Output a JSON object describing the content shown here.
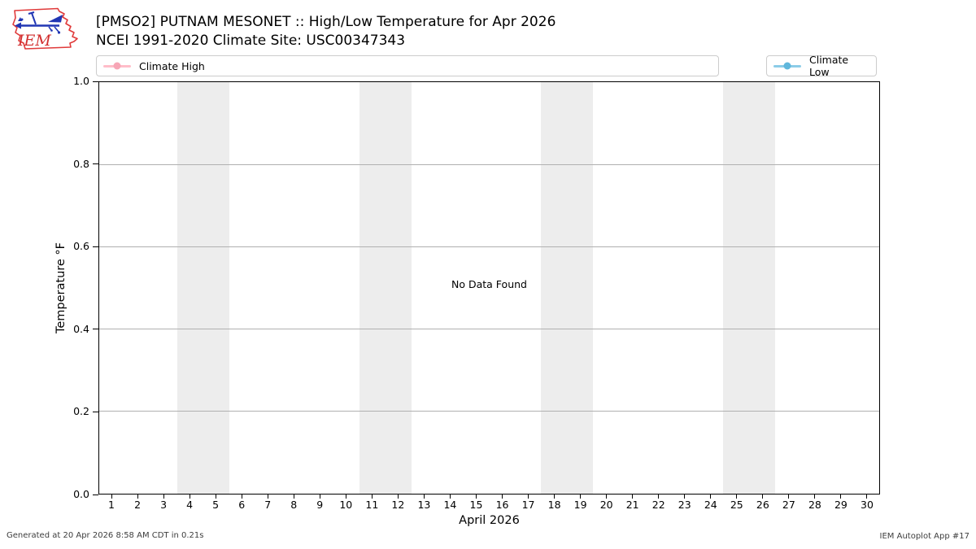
{
  "header": {
    "title": "[PMSO2] PUTNAM MESONET :: High/Low Temperature for Apr 2026",
    "subtitle": "NCEI 1991-2020 Climate Site: USC00347343",
    "logo_text": "IEM",
    "logo_colors": {
      "outline": "#e03a3a",
      "vane": "#2136b4",
      "text": "#d22f2f"
    }
  },
  "legend": {
    "entries": [
      {
        "label": "Climate High",
        "line_color": "#ffbdc9",
        "marker_color": "#f7a6b6"
      },
      {
        "label": "Climate Low",
        "line_color": "#8ccce8",
        "marker_color": "#5fb7dc"
      }
    ]
  },
  "plot": {
    "no_data_text": "No Data Found",
    "band_color": "#ededed",
    "grid_color": "#b0b0b0",
    "weekend_bands": [
      [
        3.5,
        5.5
      ],
      [
        10.5,
        12.5
      ],
      [
        17.5,
        19.5
      ],
      [
        24.5,
        26.5
      ]
    ],
    "x_axis": {
      "label": "April 2026",
      "ticks": [
        "1",
        "2",
        "3",
        "4",
        "5",
        "6",
        "7",
        "8",
        "9",
        "10",
        "11",
        "12",
        "13",
        "14",
        "15",
        "16",
        "17",
        "18",
        "19",
        "20",
        "21",
        "22",
        "23",
        "24",
        "25",
        "26",
        "27",
        "28",
        "29",
        "30"
      ]
    },
    "y_axis": {
      "label": "Temperature °F",
      "ticks": [
        "0.0",
        "0.2",
        "0.4",
        "0.6",
        "0.8",
        "1.0"
      ]
    }
  },
  "footer": {
    "generated": "Generated at 20 Apr 2026 8:58 AM CDT in 0.21s",
    "app": "IEM Autoplot App #17"
  },
  "chart_data": {
    "type": "line",
    "title": "[PMSO2] PUTNAM MESONET :: High/Low Temperature for Apr 2026",
    "subtitle": "NCEI 1991-2020 Climate Site: USC00347343",
    "xlabel": "April 2026",
    "ylabel": "Temperature °F",
    "x": [
      1,
      2,
      3,
      4,
      5,
      6,
      7,
      8,
      9,
      10,
      11,
      12,
      13,
      14,
      15,
      16,
      17,
      18,
      19,
      20,
      21,
      22,
      23,
      24,
      25,
      26,
      27,
      28,
      29,
      30
    ],
    "xlim": [
      0.5,
      30.5
    ],
    "ylim": [
      0.0,
      1.0
    ],
    "y_ticks": [
      0.0,
      0.2,
      0.4,
      0.6,
      0.8,
      1.0
    ],
    "series": [
      {
        "name": "Climate High",
        "color": "#ffbdc9",
        "values": []
      },
      {
        "name": "Climate Low",
        "color": "#8ccce8",
        "values": []
      }
    ],
    "annotations": [
      "No Data Found"
    ],
    "shaded_x_bands": [
      [
        3.5,
        5.5
      ],
      [
        10.5,
        12.5
      ],
      [
        17.5,
        19.5
      ],
      [
        24.5,
        26.5
      ]
    ],
    "grid": "horizontal",
    "legend_position": "top, two boxes (left: Climate High, right: Climate Low)"
  }
}
